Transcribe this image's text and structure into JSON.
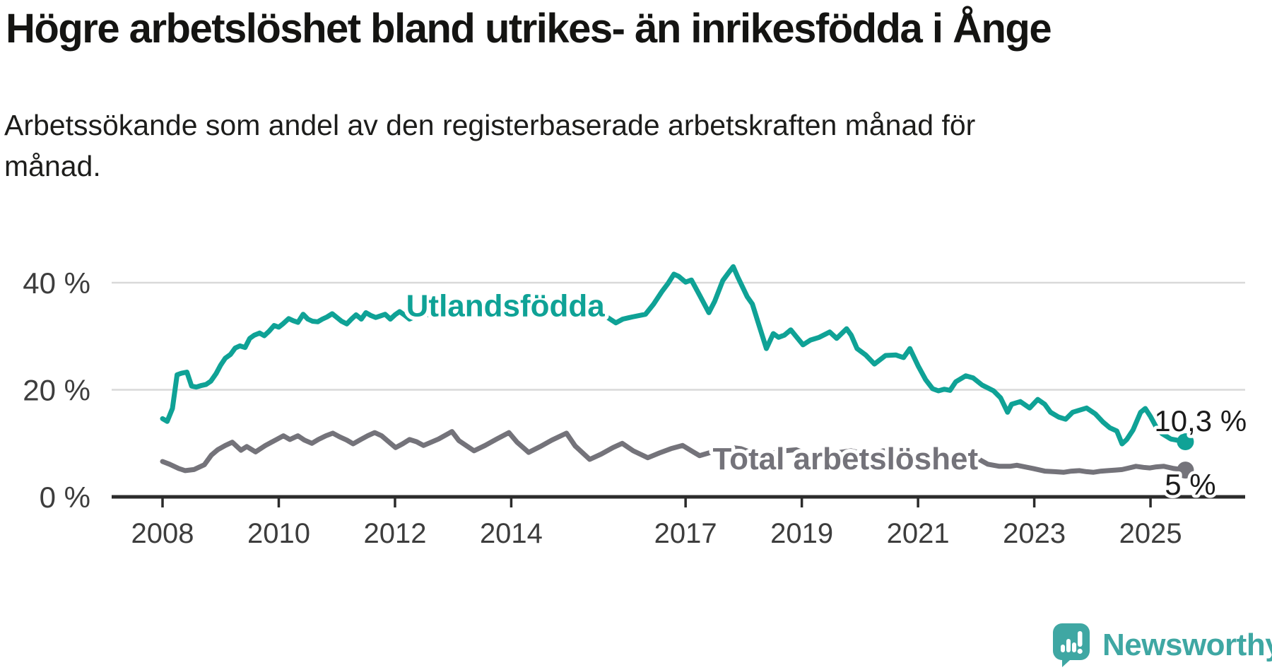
{
  "header": {
    "title": "Högre arbetslöshet bland utrikes- än inrikesfödda i Ånge",
    "subtitle": "Arbetssökande som andel av den registerbaserade arbetskraften månad för månad."
  },
  "footer": {
    "brand": "Newsworthy",
    "logo_icon": "speech-bubble-bar-chart-icon",
    "brand_color": "#3fa7a3"
  },
  "chart_data": {
    "type": "line",
    "title": "Högre arbetslöshet bland utrikes- än inrikesfödda i Ånge",
    "subtitle": "Arbetssökande som andel av den registerbaserade arbetskraften månad för månad.",
    "unit": "%",
    "x_axis": {
      "tick_values": [
        2008,
        2010,
        2012,
        2014,
        2017,
        2019,
        2021,
        2023,
        2025
      ],
      "tick_labels": [
        "2008",
        "2010",
        "2012",
        "2014",
        "2017",
        "2019",
        "2021",
        "2023",
        "2025"
      ],
      "range": [
        2007.1,
        2026.1
      ],
      "grid": false
    },
    "y_axis": {
      "tick_values": [
        0,
        20,
        40
      ],
      "tick_labels": [
        "0 %",
        "20 %",
        "40 %"
      ],
      "range": [
        0,
        44
      ],
      "grid": true
    },
    "colors": {
      "grid": "#d9d9d9",
      "axis": "#2b2b2b",
      "tick_text": "#3d3d3d"
    },
    "series": [
      {
        "name": "Utlandsfödda",
        "color": "#0fa296",
        "label": {
          "text": "Utlandsfödda",
          "x": 2013.9,
          "y": 36.0
        },
        "end_label": "10,3 %",
        "end_value": 10.3,
        "points": [
          [
            2008.0,
            14.6
          ],
          [
            2008.08,
            14.1
          ],
          [
            2008.17,
            16.5
          ],
          [
            2008.25,
            22.8
          ],
          [
            2008.33,
            23.1
          ],
          [
            2008.42,
            23.3
          ],
          [
            2008.5,
            20.7
          ],
          [
            2008.58,
            20.5
          ],
          [
            2008.67,
            20.8
          ],
          [
            2008.75,
            21.0
          ],
          [
            2008.83,
            21.6
          ],
          [
            2008.92,
            23.0
          ],
          [
            2009.0,
            24.6
          ],
          [
            2009.08,
            25.9
          ],
          [
            2009.17,
            26.6
          ],
          [
            2009.25,
            27.8
          ],
          [
            2009.33,
            28.2
          ],
          [
            2009.42,
            27.9
          ],
          [
            2009.5,
            29.6
          ],
          [
            2009.58,
            30.2
          ],
          [
            2009.67,
            30.6
          ],
          [
            2009.75,
            30.1
          ],
          [
            2009.83,
            30.9
          ],
          [
            2009.92,
            32.0
          ],
          [
            2010.0,
            31.7
          ],
          [
            2010.08,
            32.4
          ],
          [
            2010.17,
            33.3
          ],
          [
            2010.25,
            32.9
          ],
          [
            2010.33,
            32.6
          ],
          [
            2010.42,
            34.1
          ],
          [
            2010.5,
            33.2
          ],
          [
            2010.58,
            32.8
          ],
          [
            2010.67,
            32.7
          ],
          [
            2010.75,
            33.2
          ],
          [
            2010.83,
            33.6
          ],
          [
            2010.92,
            34.2
          ],
          [
            2011.0,
            33.5
          ],
          [
            2011.08,
            32.8
          ],
          [
            2011.17,
            32.3
          ],
          [
            2011.25,
            33.2
          ],
          [
            2011.33,
            34.0
          ],
          [
            2011.42,
            33.2
          ],
          [
            2011.5,
            34.4
          ],
          [
            2011.58,
            33.9
          ],
          [
            2011.67,
            33.5
          ],
          [
            2011.75,
            33.8
          ],
          [
            2011.83,
            34.1
          ],
          [
            2011.92,
            33.2
          ],
          [
            2012.0,
            34.0
          ],
          [
            2012.08,
            34.6
          ],
          [
            2012.17,
            33.9
          ],
          [
            2012.25,
            33.2
          ],
          [
            2012.33,
            33.6
          ],
          [
            2012.42,
            33.9
          ],
          [
            2012.5,
            34.4
          ],
          [
            2012.58,
            34.0
          ],
          [
            2012.67,
            33.5
          ],
          [
            2012.75,
            33.8
          ],
          [
            2012.83,
            34.3
          ],
          [
            2012.92,
            34.8
          ],
          [
            2013.0,
            34.4
          ],
          [
            2013.17,
            33.8
          ],
          [
            2013.33,
            34.6
          ],
          [
            2013.5,
            35.0
          ],
          [
            2013.67,
            34.2
          ],
          [
            2013.83,
            33.8
          ],
          [
            2014.0,
            34.5
          ],
          [
            2014.17,
            35.1
          ],
          [
            2014.33,
            34.3
          ],
          [
            2014.5,
            33.7
          ],
          [
            2014.67,
            34.4
          ],
          [
            2014.83,
            34.9
          ],
          [
            2015.0,
            34.2
          ],
          [
            2015.17,
            33.6
          ],
          [
            2015.33,
            34.0
          ],
          [
            2015.5,
            33.8
          ],
          [
            2015.63,
            33.7
          ],
          [
            2015.8,
            32.5
          ],
          [
            2015.92,
            33.2
          ],
          [
            2016.08,
            33.6
          ],
          [
            2016.31,
            34.1
          ],
          [
            2016.45,
            36.0
          ],
          [
            2016.59,
            38.3
          ],
          [
            2016.7,
            39.9
          ],
          [
            2016.8,
            41.6
          ],
          [
            2016.88,
            41.2
          ],
          [
            2017.0,
            40.1
          ],
          [
            2017.1,
            40.5
          ],
          [
            2017.25,
            37.5
          ],
          [
            2017.4,
            34.4
          ],
          [
            2017.5,
            36.5
          ],
          [
            2017.64,
            40.4
          ],
          [
            2017.75,
            42.0
          ],
          [
            2017.82,
            43.0
          ],
          [
            2017.9,
            41.0
          ],
          [
            2018.06,
            37.4
          ],
          [
            2018.15,
            36.0
          ],
          [
            2018.25,
            32.5
          ],
          [
            2018.39,
            27.7
          ],
          [
            2018.51,
            30.5
          ],
          [
            2018.6,
            29.8
          ],
          [
            2018.7,
            30.2
          ],
          [
            2018.81,
            31.2
          ],
          [
            2018.9,
            30.0
          ],
          [
            2019.02,
            28.4
          ],
          [
            2019.15,
            29.3
          ],
          [
            2019.3,
            29.8
          ],
          [
            2019.48,
            30.8
          ],
          [
            2019.6,
            29.6
          ],
          [
            2019.77,
            31.4
          ],
          [
            2019.85,
            30.2
          ],
          [
            2019.95,
            27.7
          ],
          [
            2020.1,
            26.5
          ],
          [
            2020.25,
            24.8
          ],
          [
            2020.44,
            26.4
          ],
          [
            2020.62,
            26.5
          ],
          [
            2020.75,
            26.0
          ],
          [
            2020.86,
            27.7
          ],
          [
            2021.0,
            24.5
          ],
          [
            2021.13,
            21.9
          ],
          [
            2021.25,
            20.2
          ],
          [
            2021.35,
            19.8
          ],
          [
            2021.45,
            20.1
          ],
          [
            2021.55,
            19.9
          ],
          [
            2021.65,
            21.5
          ],
          [
            2021.82,
            22.6
          ],
          [
            2021.95,
            22.2
          ],
          [
            2022.1,
            20.9
          ],
          [
            2022.3,
            19.8
          ],
          [
            2022.42,
            18.5
          ],
          [
            2022.54,
            15.8
          ],
          [
            2022.61,
            17.3
          ],
          [
            2022.76,
            17.8
          ],
          [
            2022.92,
            16.6
          ],
          [
            2023.06,
            18.2
          ],
          [
            2023.18,
            17.3
          ],
          [
            2023.28,
            15.8
          ],
          [
            2023.42,
            14.9
          ],
          [
            2023.54,
            14.5
          ],
          [
            2023.66,
            15.8
          ],
          [
            2023.78,
            16.2
          ],
          [
            2023.9,
            16.6
          ],
          [
            2024.05,
            15.5
          ],
          [
            2024.18,
            14.0
          ],
          [
            2024.3,
            12.9
          ],
          [
            2024.42,
            12.3
          ],
          [
            2024.51,
            9.9
          ],
          [
            2024.59,
            10.7
          ],
          [
            2024.7,
            12.5
          ],
          [
            2024.83,
            15.8
          ],
          [
            2024.91,
            16.5
          ],
          [
            2025.0,
            15.0
          ],
          [
            2025.1,
            13.0
          ],
          [
            2025.2,
            11.8
          ],
          [
            2025.35,
            10.8
          ],
          [
            2025.6,
            10.3
          ]
        ]
      },
      {
        "name": "Total arbetslöshet",
        "color": "#74737a",
        "label": {
          "text": "Total arbetslöshet",
          "x": 2019.75,
          "y": 7.4
        },
        "end_label": "5 %",
        "end_value": 5.0,
        "points": [
          [
            2008.0,
            6.6
          ],
          [
            2008.12,
            6.1
          ],
          [
            2008.28,
            5.3
          ],
          [
            2008.39,
            4.9
          ],
          [
            2008.54,
            5.1
          ],
          [
            2008.72,
            6.0
          ],
          [
            2008.84,
            7.8
          ],
          [
            2008.95,
            8.8
          ],
          [
            2009.08,
            9.6
          ],
          [
            2009.2,
            10.2
          ],
          [
            2009.35,
            8.7
          ],
          [
            2009.45,
            9.4
          ],
          [
            2009.6,
            8.4
          ],
          [
            2009.77,
            9.6
          ],
          [
            2009.96,
            10.7
          ],
          [
            2010.08,
            11.4
          ],
          [
            2010.19,
            10.7
          ],
          [
            2010.33,
            11.4
          ],
          [
            2010.44,
            10.6
          ],
          [
            2010.57,
            10.0
          ],
          [
            2010.68,
            10.7
          ],
          [
            2010.81,
            11.4
          ],
          [
            2010.93,
            11.9
          ],
          [
            2011.05,
            11.2
          ],
          [
            2011.17,
            10.6
          ],
          [
            2011.28,
            9.9
          ],
          [
            2011.41,
            10.7
          ],
          [
            2011.53,
            11.4
          ],
          [
            2011.65,
            12.0
          ],
          [
            2011.77,
            11.4
          ],
          [
            2011.89,
            10.3
          ],
          [
            2012.01,
            9.2
          ],
          [
            2012.13,
            9.9
          ],
          [
            2012.25,
            10.7
          ],
          [
            2012.37,
            10.3
          ],
          [
            2012.49,
            9.6
          ],
          [
            2012.75,
            10.8
          ],
          [
            2012.98,
            12.2
          ],
          [
            2013.1,
            10.5
          ],
          [
            2013.36,
            8.6
          ],
          [
            2013.55,
            9.6
          ],
          [
            2013.75,
            10.8
          ],
          [
            2013.96,
            12.0
          ],
          [
            2014.1,
            10.2
          ],
          [
            2014.3,
            8.3
          ],
          [
            2014.5,
            9.4
          ],
          [
            2014.7,
            10.6
          ],
          [
            2014.95,
            11.9
          ],
          [
            2015.1,
            9.5
          ],
          [
            2015.35,
            7.0
          ],
          [
            2015.55,
            8.0
          ],
          [
            2015.75,
            9.2
          ],
          [
            2015.91,
            10.0
          ],
          [
            2016.1,
            8.6
          ],
          [
            2016.35,
            7.3
          ],
          [
            2016.55,
            8.2
          ],
          [
            2016.75,
            9.0
          ],
          [
            2016.95,
            9.6
          ],
          [
            2017.1,
            8.6
          ],
          [
            2017.24,
            7.7
          ],
          [
            2017.4,
            8.2
          ],
          [
            2017.6,
            8.8
          ],
          [
            2017.8,
            9.2
          ],
          [
            2017.95,
            9.0
          ],
          [
            2018.1,
            8.4
          ],
          [
            2018.3,
            7.8
          ],
          [
            2018.5,
            8.2
          ],
          [
            2018.7,
            8.6
          ],
          [
            2018.9,
            8.8
          ],
          [
            2019.05,
            8.2
          ],
          [
            2019.25,
            7.6
          ],
          [
            2019.45,
            7.9
          ],
          [
            2019.65,
            8.3
          ],
          [
            2019.85,
            8.6
          ],
          [
            2020.0,
            8.2
          ],
          [
            2020.2,
            8.0
          ],
          [
            2020.4,
            8.6
          ],
          [
            2020.6,
            8.4
          ],
          [
            2020.8,
            8.0
          ],
          [
            2021.0,
            7.8
          ],
          [
            2021.2,
            7.2
          ],
          [
            2021.4,
            6.8
          ],
          [
            2021.6,
            7.0
          ],
          [
            2021.8,
            7.3
          ],
          [
            2022.0,
            7.3
          ],
          [
            2022.2,
            6.1
          ],
          [
            2022.4,
            5.7
          ],
          [
            2022.58,
            5.7
          ],
          [
            2022.7,
            5.9
          ],
          [
            2022.98,
            5.3
          ],
          [
            2023.18,
            4.8
          ],
          [
            2023.35,
            4.7
          ],
          [
            2023.51,
            4.6
          ],
          [
            2023.64,
            4.8
          ],
          [
            2023.78,
            4.9
          ],
          [
            2023.9,
            4.7
          ],
          [
            2024.02,
            4.6
          ],
          [
            2024.15,
            4.8
          ],
          [
            2024.27,
            4.9
          ],
          [
            2024.4,
            5.0
          ],
          [
            2024.51,
            5.1
          ],
          [
            2024.63,
            5.4
          ],
          [
            2024.75,
            5.7
          ],
          [
            2024.88,
            5.5
          ],
          [
            2024.99,
            5.4
          ],
          [
            2025.1,
            5.6
          ],
          [
            2025.23,
            5.7
          ],
          [
            2025.4,
            5.3
          ],
          [
            2025.6,
            5.0
          ]
        ]
      }
    ],
    "legend_position": "inline-labels",
    "annotations": [
      "10,3 %",
      "5 %"
    ]
  }
}
